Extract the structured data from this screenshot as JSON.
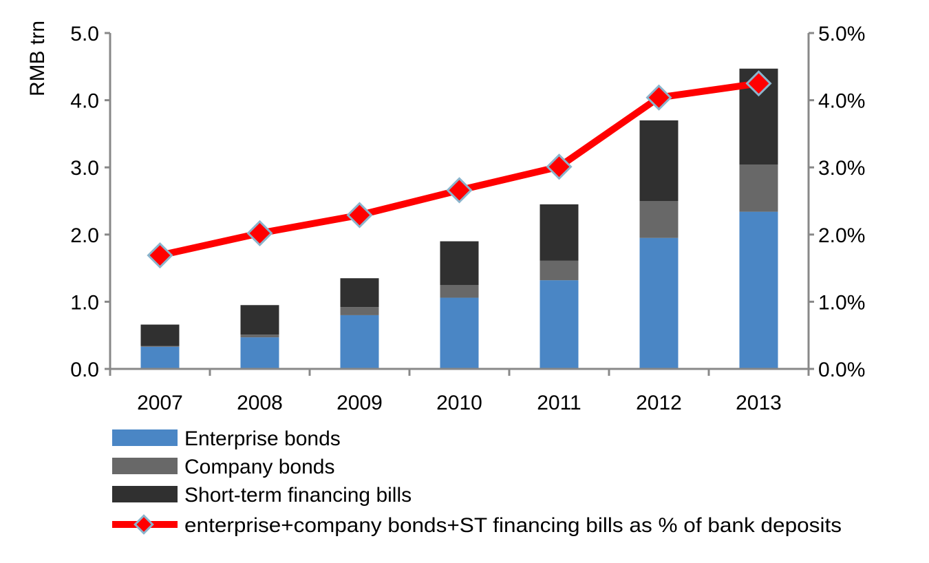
{
  "chart_data": {
    "type": "bar",
    "stacked": true,
    "categories": [
      "2007",
      "2008",
      "2009",
      "2010",
      "2011",
      "2012",
      "2013"
    ],
    "series": [
      {
        "name": "Enterprise bonds",
        "type": "bar",
        "axis": "left",
        "color": "#4a86c5",
        "values": [
          0.33,
          0.47,
          0.8,
          1.06,
          1.32,
          1.95,
          2.34
        ]
      },
      {
        "name": "Company bonds",
        "type": "bar",
        "axis": "left",
        "color": "#686868",
        "values": [
          0.01,
          0.04,
          0.12,
          0.19,
          0.29,
          0.55,
          0.7
        ]
      },
      {
        "name": "Short-term financing bills",
        "type": "bar",
        "axis": "left",
        "color": "#303030",
        "values": [
          0.32,
          0.44,
          0.43,
          0.65,
          0.84,
          1.2,
          1.43
        ]
      },
      {
        "name": "enterprise+company bonds+ST financing bills as % of bank deposits",
        "type": "line",
        "axis": "right",
        "color": "#ff0000",
        "marker": "diamond",
        "values": [
          1.69,
          2.02,
          2.29,
          2.66,
          3.01,
          4.04,
          4.25
        ]
      }
    ],
    "title": "",
    "xlabel": "",
    "ylabel": "RMB trn",
    "ylim": [
      0,
      5
    ],
    "yticks": [
      "0.0",
      "1.0",
      "2.0",
      "3.0",
      "4.0",
      "5.0"
    ],
    "y2lim": [
      0,
      5
    ],
    "y2ticks": [
      "0.0%",
      "1.0%",
      "2.0%",
      "3.0%",
      "4.0%",
      "5.0%"
    ],
    "grid": false,
    "legend_position": "bottom-left"
  }
}
